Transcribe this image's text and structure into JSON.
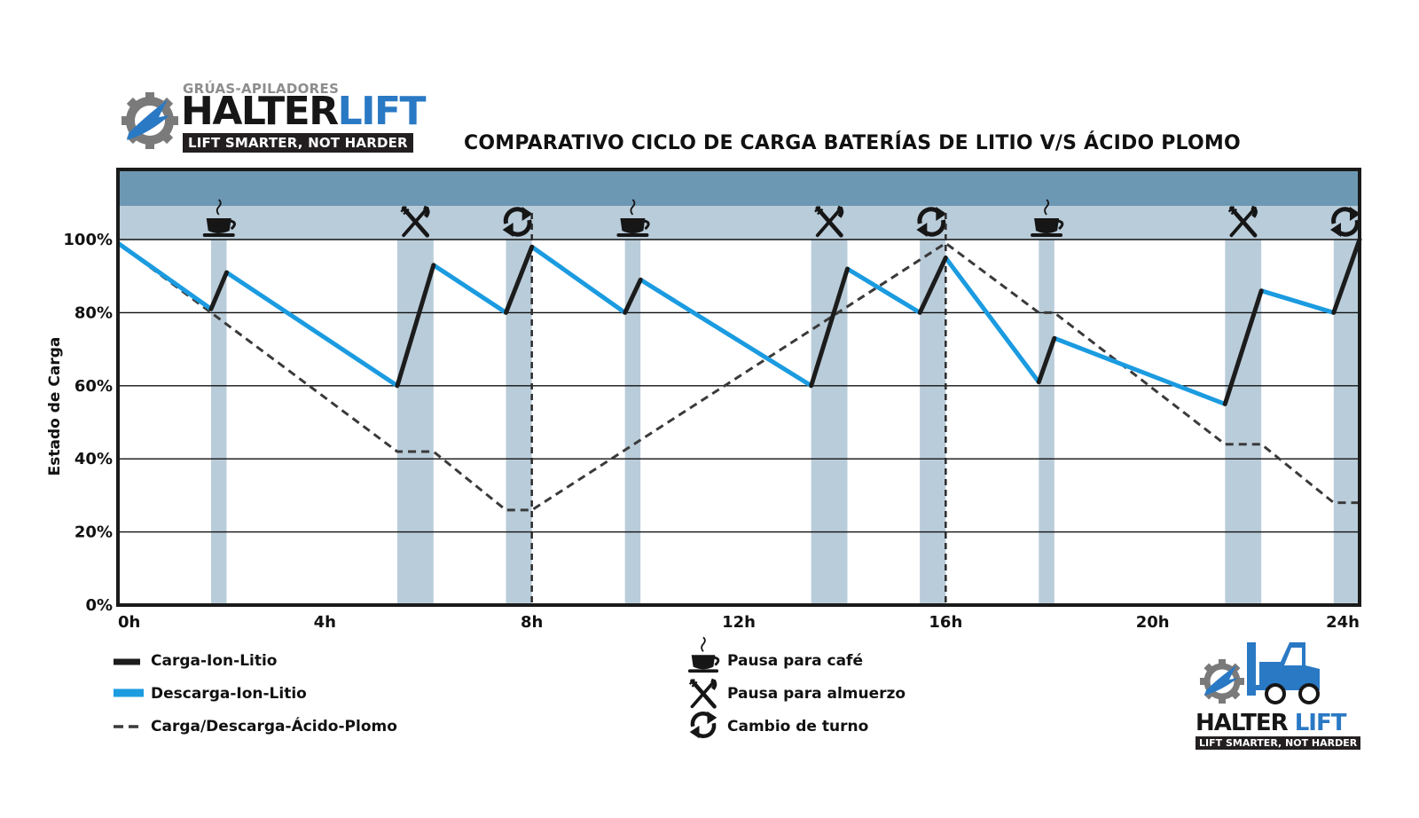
{
  "brand": {
    "subtitle": "GRÚAS-APILADORES",
    "name_part1": "HALTER",
    "name_part2": "LIFT",
    "tagline": "LIFT SMARTER, NOT HARDER",
    "bottom_name_part1": "HALTER",
    "bottom_name_part2": "LIFT",
    "bottom_tagline": "LIFT SMARTER, NOT HARDER"
  },
  "colors": {
    "charge": "#1c1c1c",
    "discharge": "#1b9be0",
    "lead_acid": "#3a3a3a",
    "band": "#b9ccda",
    "header_band": "#6d98b3",
    "brand_blue": "#2a79c4"
  },
  "legend": {
    "charge_label": "Carga-Ion-Litio",
    "discharge_label": "Descarga-Ion-Litio",
    "lead_acid_label": "Carga/Descarga-Ácido-Plomo",
    "coffee_label": "Pausa para café",
    "lunch_label": "Pausa para almuerzo",
    "shift_label": "Cambio de turno"
  },
  "chart_data": {
    "type": "line",
    "title": "COMPARATIVO CICLO DE CARGA  BATERÍAS DE LITIO V/S ÁCIDO PLOMO",
    "xlabel": "",
    "ylabel": "Estado de Carga",
    "xlim": [
      0,
      24
    ],
    "ylim": [
      0,
      100
    ],
    "x_ticks": [
      {
        "value": 0,
        "label": "0h"
      },
      {
        "value": 4,
        "label": "4h"
      },
      {
        "value": 8,
        "label": "8h"
      },
      {
        "value": 12,
        "label": "12h"
      },
      {
        "value": 16,
        "label": "16h"
      },
      {
        "value": 20,
        "label": "20h"
      },
      {
        "value": 24,
        "label": "24h"
      }
    ],
    "y_ticks": [
      {
        "value": 0,
        "label": "0%"
      },
      {
        "value": 20,
        "label": "20%"
      },
      {
        "value": 40,
        "label": "40%"
      },
      {
        "value": 60,
        "label": "60%"
      },
      {
        "value": 80,
        "label": "80%"
      },
      {
        "value": 100,
        "label": "100%"
      }
    ],
    "grid": "horizontal",
    "breaks": [
      {
        "start": 1.8,
        "end": 2.1,
        "icon": "coffee"
      },
      {
        "start": 5.4,
        "end": 6.1,
        "icon": "lunch"
      },
      {
        "start": 7.5,
        "end": 8.0,
        "icon": "shift"
      },
      {
        "start": 9.8,
        "end": 10.1,
        "icon": "coffee"
      },
      {
        "start": 13.4,
        "end": 14.1,
        "icon": "lunch"
      },
      {
        "start": 15.5,
        "end": 16.0,
        "icon": "shift"
      },
      {
        "start": 17.8,
        "end": 18.1,
        "icon": "coffee"
      },
      {
        "start": 21.4,
        "end": 22.1,
        "icon": "lunch"
      },
      {
        "start": 23.5,
        "end": 24.0,
        "icon": "shift"
      }
    ],
    "shift_lines": [
      8,
      16
    ],
    "series": [
      {
        "name": "Descarga-Ion-Litio",
        "style": "discharge",
        "segments": [
          [
            [
              0,
              99
            ],
            [
              1.8,
              81
            ]
          ],
          [
            [
              2.1,
              91
            ],
            [
              5.4,
              60
            ]
          ],
          [
            [
              6.1,
              93
            ],
            [
              7.5,
              80
            ]
          ],
          [
            [
              8.0,
              98
            ],
            [
              9.8,
              80
            ]
          ],
          [
            [
              10.1,
              89
            ],
            [
              13.4,
              60
            ]
          ],
          [
            [
              14.1,
              92
            ],
            [
              15.5,
              80
            ]
          ],
          [
            [
              16.0,
              95
            ],
            [
              17.8,
              61
            ]
          ],
          [
            [
              18.1,
              73
            ],
            [
              21.4,
              55
            ]
          ],
          [
            [
              22.1,
              86
            ],
            [
              23.5,
              80
            ]
          ]
        ]
      },
      {
        "name": "Carga-Ion-Litio",
        "style": "charge",
        "segments": [
          [
            [
              1.8,
              81
            ],
            [
              2.1,
              91
            ]
          ],
          [
            [
              5.4,
              60
            ],
            [
              6.1,
              93
            ]
          ],
          [
            [
              7.5,
              80
            ],
            [
              8.0,
              98
            ]
          ],
          [
            [
              9.8,
              80
            ],
            [
              10.1,
              89
            ]
          ],
          [
            [
              13.4,
              60
            ],
            [
              14.1,
              92
            ]
          ],
          [
            [
              15.5,
              80
            ],
            [
              16.0,
              95
            ]
          ],
          [
            [
              17.8,
              61
            ],
            [
              18.1,
              73
            ]
          ],
          [
            [
              21.4,
              55
            ],
            [
              22.1,
              86
            ]
          ],
          [
            [
              23.5,
              80
            ],
            [
              24.0,
              100
            ]
          ]
        ]
      },
      {
        "name": "Carga/Descarga-Ácido-Plomo",
        "style": "lead",
        "segments": [
          [
            [
              0,
              99
            ],
            [
              5.4,
              42
            ],
            [
              6.1,
              42
            ],
            [
              7.5,
              26
            ],
            [
              8.0,
              26
            ],
            [
              16.0,
              99
            ],
            [
              17.8,
              80
            ],
            [
              18.1,
              80
            ],
            [
              21.4,
              44
            ],
            [
              22.1,
              44
            ],
            [
              23.5,
              28
            ],
            [
              24.0,
              28
            ]
          ]
        ]
      }
    ]
  }
}
